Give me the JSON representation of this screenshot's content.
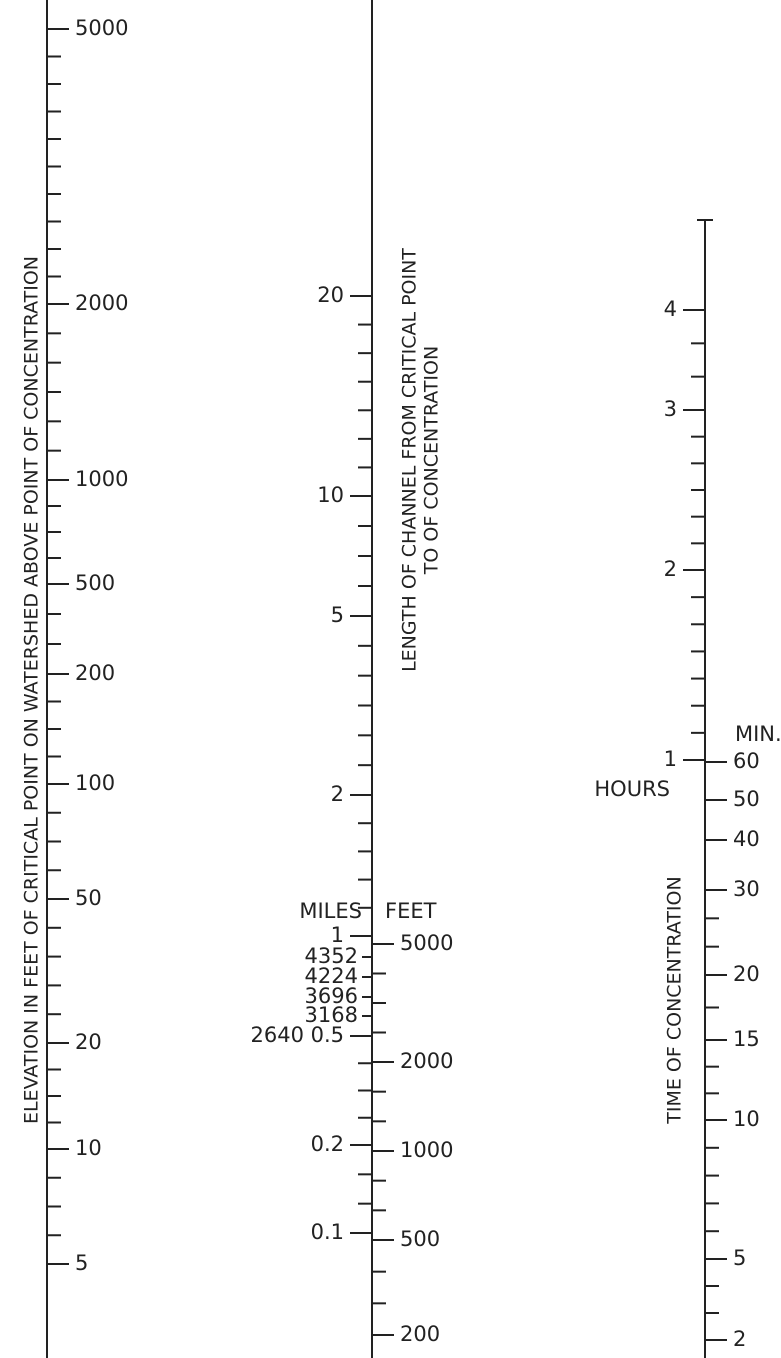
{
  "scales": [
    {
      "title": "ELEVATION IN FEET OF CRITICAL POINT ON WATERSHED ABOVE POINT OF CONCENTRATION",
      "right_labels": [
        "5000",
        "2000",
        "1000",
        "500",
        "200",
        "100",
        "50",
        "20",
        "10",
        "5"
      ]
    },
    {
      "title_lines": [
        "LENGTH OF CHANNEL FROM CRITICAL POINT",
        "TO OF CONCENTRATION"
      ],
      "left_unit": "MILES",
      "right_unit": "FEET",
      "left_labels": [
        "20",
        "10",
        "5",
        "2",
        "1",
        "4352",
        "4224",
        "3696",
        "3168",
        "2640 0.5",
        "0.2",
        "0.1"
      ],
      "right_labels": [
        "5000",
        "2000",
        "1000",
        "500",
        "200"
      ]
    },
    {
      "title": "TIME OF CONCENTRATION",
      "left_unit": "HOURS",
      "right_unit": "MIN.",
      "left_labels": [
        "4",
        "3",
        "2",
        "1"
      ],
      "right_labels": [
        "60",
        "50",
        "40",
        "30",
        "20",
        "15",
        "10",
        "5",
        "2"
      ]
    }
  ]
}
